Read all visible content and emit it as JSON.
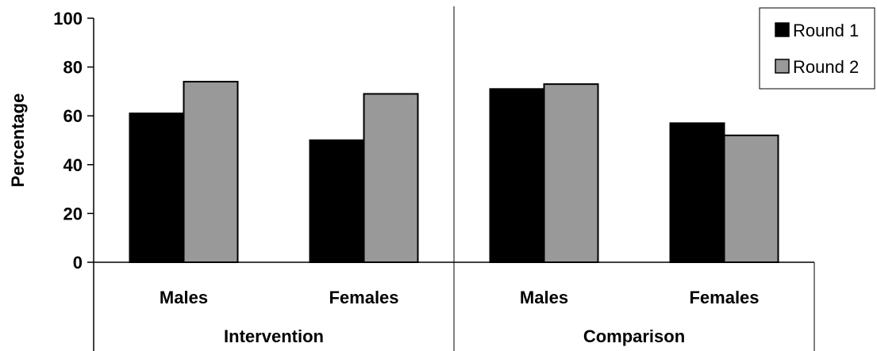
{
  "chart_data": {
    "type": "bar",
    "ylabel": "Percentage",
    "ylim": [
      0,
      100
    ],
    "yticks": [
      0,
      20,
      40,
      60,
      80,
      100
    ],
    "groups": [
      {
        "label": "Intervention",
        "categories": [
          "Males",
          "Females"
        ]
      },
      {
        "label": "Comparison",
        "categories": [
          "Males",
          "Females"
        ]
      }
    ],
    "series": [
      {
        "name": "Round 1",
        "color": "#000000",
        "values": [
          61,
          50,
          71,
          57
        ]
      },
      {
        "name": "Round 2",
        "color": "#999999",
        "values": [
          74,
          69,
          73,
          52
        ]
      }
    ],
    "legend_position": "top-right",
    "grid": false
  }
}
